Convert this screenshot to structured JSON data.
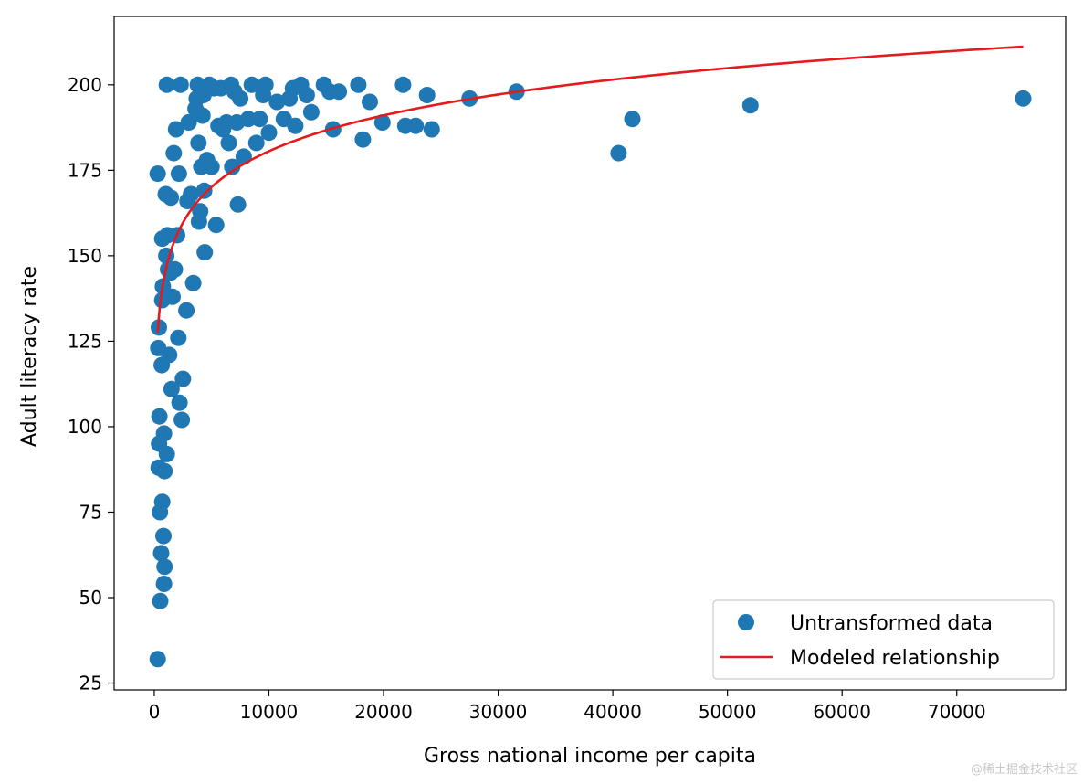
{
  "chart_data": {
    "type": "scatter",
    "xlabel": "Gross national income per capita",
    "ylabel": "Adult literacy rate",
    "xlim": [
      -3500,
      79500
    ],
    "ylim": [
      23,
      220
    ],
    "xticks": [
      0,
      10000,
      20000,
      30000,
      40000,
      50000,
      60000,
      70000
    ],
    "yticks": [
      25,
      50,
      75,
      100,
      125,
      150,
      175,
      200
    ],
    "grid": false,
    "legend_position": "lower-right",
    "colors": {
      "scatter": "#1f77b4",
      "line": "#e41a1c"
    },
    "series": [
      {
        "name": "Untransformed data",
        "kind": "scatter",
        "points": [
          [
            300,
            174
          ],
          [
            350,
            123
          ],
          [
            400,
            129
          ],
          [
            450,
            103
          ],
          [
            420,
            95
          ],
          [
            380,
            88
          ],
          [
            500,
            75
          ],
          [
            520,
            49
          ],
          [
            300,
            32
          ],
          [
            600,
            63
          ],
          [
            700,
            78
          ],
          [
            650,
            118
          ],
          [
            700,
            137
          ],
          [
            750,
            141
          ],
          [
            700,
            155
          ],
          [
            800,
            68
          ],
          [
            850,
            54
          ],
          [
            900,
            59
          ],
          [
            850,
            98
          ],
          [
            900,
            87
          ],
          [
            1000,
            168
          ],
          [
            1100,
            200
          ],
          [
            1150,
            156
          ],
          [
            1050,
            150
          ],
          [
            1200,
            146
          ],
          [
            1100,
            92
          ],
          [
            1300,
            121
          ],
          [
            1400,
            145
          ],
          [
            1450,
            167
          ],
          [
            1500,
            111
          ],
          [
            1600,
            138
          ],
          [
            1700,
            180
          ],
          [
            1800,
            146
          ],
          [
            1900,
            187
          ],
          [
            2000,
            156
          ],
          [
            2100,
            126
          ],
          [
            2150,
            174
          ],
          [
            2200,
            107
          ],
          [
            2300,
            200
          ],
          [
            2400,
            102
          ],
          [
            2500,
            114
          ],
          [
            2800,
            134
          ],
          [
            2900,
            166
          ],
          [
            3000,
            189
          ],
          [
            3200,
            168
          ],
          [
            3400,
            142
          ],
          [
            3600,
            193
          ],
          [
            3700,
            196
          ],
          [
            3800,
            200
          ],
          [
            3850,
            183
          ],
          [
            3900,
            160
          ],
          [
            4000,
            163
          ],
          [
            4100,
            176
          ],
          [
            4200,
            191
          ],
          [
            4300,
            197
          ],
          [
            4350,
            169
          ],
          [
            4400,
            151
          ],
          [
            4600,
            178
          ],
          [
            4800,
            200
          ],
          [
            5000,
            176
          ],
          [
            5200,
            199
          ],
          [
            5400,
            159
          ],
          [
            5600,
            188
          ],
          [
            5800,
            199
          ],
          [
            6000,
            187
          ],
          [
            6300,
            189
          ],
          [
            6500,
            183
          ],
          [
            6700,
            200
          ],
          [
            6800,
            176
          ],
          [
            7000,
            198
          ],
          [
            7200,
            189
          ],
          [
            7300,
            165
          ],
          [
            7500,
            196
          ],
          [
            7800,
            179
          ],
          [
            8200,
            190
          ],
          [
            8500,
            200
          ],
          [
            8900,
            183
          ],
          [
            9200,
            190
          ],
          [
            9500,
            197
          ],
          [
            9700,
            200
          ],
          [
            10000,
            186
          ],
          [
            10700,
            195
          ],
          [
            11300,
            190
          ],
          [
            11800,
            196
          ],
          [
            12100,
            199
          ],
          [
            12300,
            188
          ],
          [
            12800,
            200
          ],
          [
            13300,
            197
          ],
          [
            13700,
            192
          ],
          [
            14800,
            200
          ],
          [
            15300,
            198
          ],
          [
            15600,
            187
          ],
          [
            16100,
            198
          ],
          [
            17800,
            200
          ],
          [
            18200,
            184
          ],
          [
            18800,
            195
          ],
          [
            19900,
            189
          ],
          [
            21700,
            200
          ],
          [
            21900,
            188
          ],
          [
            22800,
            188
          ],
          [
            23800,
            197
          ],
          [
            24200,
            187
          ],
          [
            27500,
            196
          ],
          [
            31600,
            198
          ],
          [
            40500,
            180
          ],
          [
            41700,
            190
          ],
          [
            52000,
            194
          ],
          [
            75800,
            196
          ]
        ]
      },
      {
        "name": "Modeled relationship",
        "kind": "line",
        "model": "log",
        "intercept": 41.5,
        "slope": 15.1,
        "x_range": [
          300,
          75800
        ]
      }
    ]
  },
  "watermark": "@稀土掘金技术社区"
}
